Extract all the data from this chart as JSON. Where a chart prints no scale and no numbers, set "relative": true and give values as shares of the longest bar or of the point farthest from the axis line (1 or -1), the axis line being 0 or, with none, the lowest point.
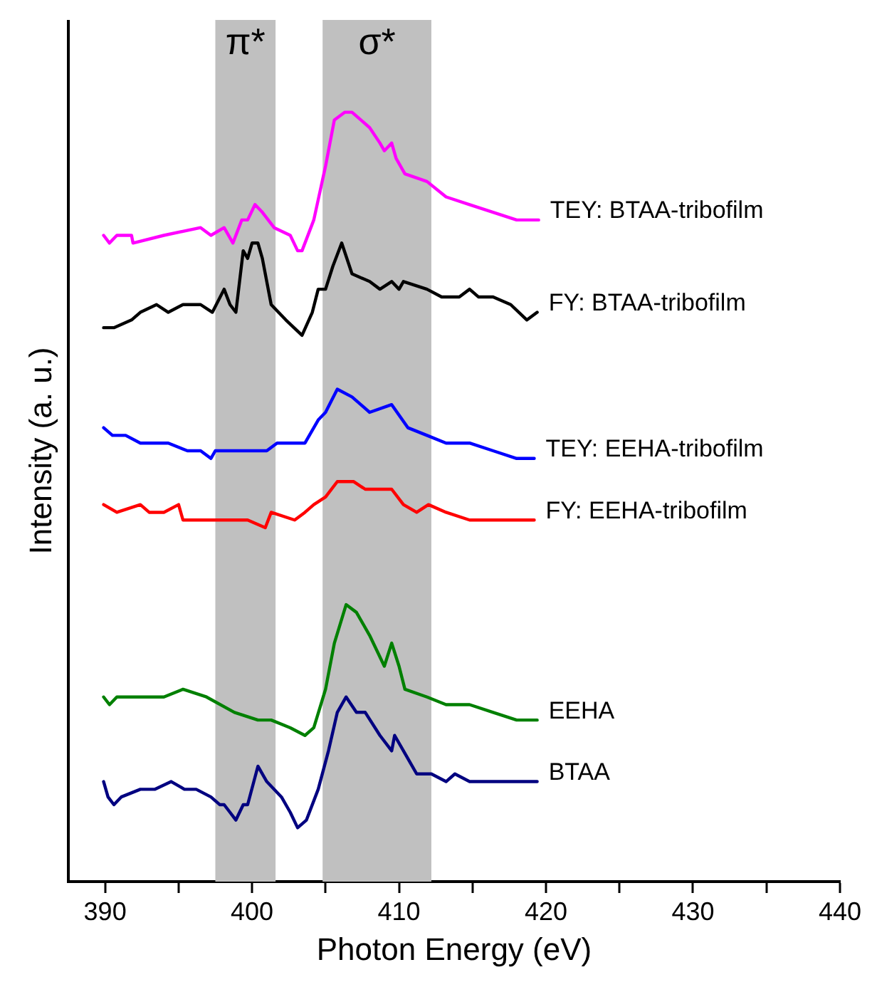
{
  "chart_data": {
    "type": "line",
    "relative": true,
    "xlabel": "Photon Energy (eV)",
    "ylabel": "Intensity (a. u.)",
    "xlim": [
      387.5,
      440
    ],
    "xticks": [
      390,
      {
        "value": 395,
        "label": null
      },
      400,
      {
        "value": 405,
        "label": null
      },
      410,
      {
        "value": 415,
        "label": null
      },
      420,
      {
        "value": 425,
        "label": null
      },
      430,
      {
        "value": 435,
        "label": null
      },
      440
    ],
    "grid": false,
    "legend": false,
    "marker": "none",
    "line_style": "solid",
    "bands": [
      {
        "axis": "x",
        "from": 397.5,
        "to": 401.6,
        "label": "π*",
        "color": "#c0c0c0"
      },
      {
        "axis": "x",
        "from": 404.8,
        "to": 412.2,
        "label": "σ*",
        "color": "#c0c0c0"
      }
    ],
    "series": [
      {
        "name": "TEY: BTAA-tribofilm",
        "color": "#ff00ff",
        "x": [
          389.9,
          390.3,
          390.8,
          391.8,
          391.9,
          394.0,
          396.5,
          397.2,
          398.1,
          398.7,
          399.3,
          399.7,
          400.2,
          400.7,
          401.5,
          402.6,
          403.1,
          403.4,
          404.2,
          405.0,
          405.6,
          406.3,
          406.8,
          407.4,
          408.0,
          408.7,
          409.0,
          409.5,
          409.8,
          410.4,
          411.9,
          413.2,
          414.8,
          416.4,
          418.0,
          419.5
        ],
        "values": [
          0.84,
          0.83,
          0.84,
          0.84,
          0.83,
          0.84,
          0.85,
          0.84,
          0.85,
          0.83,
          0.86,
          0.86,
          0.88,
          0.87,
          0.85,
          0.84,
          0.82,
          0.82,
          0.86,
          0.93,
          0.99,
          1.0,
          1.0,
          0.99,
          0.98,
          0.96,
          0.95,
          0.96,
          0.94,
          0.92,
          0.91,
          0.89,
          0.88,
          0.87,
          0.86,
          0.86
        ]
      },
      {
        "name": "FY: BTAA-tribofilm",
        "color": "#000000",
        "x": [
          389.9,
          390.6,
          391.8,
          392.4,
          393.5,
          394.3,
          395.3,
          396.5,
          397.3,
          398.1,
          398.5,
          398.9,
          399.4,
          399.7,
          400.0,
          400.4,
          400.7,
          401.3,
          402.3,
          403.4,
          404.1,
          404.5,
          405.0,
          405.5,
          406.1,
          406.8,
          408.0,
          408.7,
          409.5,
          410.0,
          410.3,
          411.9,
          412.9,
          414.1,
          414.8,
          415.4,
          416.4,
          417.6,
          418.7,
          419.4
        ],
        "values": [
          0.72,
          0.72,
          0.73,
          0.74,
          0.75,
          0.74,
          0.75,
          0.75,
          0.74,
          0.77,
          0.75,
          0.74,
          0.82,
          0.81,
          0.83,
          0.83,
          0.81,
          0.75,
          0.73,
          0.71,
          0.74,
          0.77,
          0.77,
          0.8,
          0.83,
          0.79,
          0.78,
          0.77,
          0.78,
          0.77,
          0.78,
          0.77,
          0.76,
          0.76,
          0.77,
          0.76,
          0.76,
          0.75,
          0.73,
          0.74
        ]
      },
      {
        "name": "TEY: EEHA-tribofilm",
        "color": "#0000ff",
        "x": [
          389.9,
          390.5,
          391.4,
          392.4,
          393.4,
          394.3,
          395.6,
          396.5,
          397.2,
          397.5,
          398.8,
          399.7,
          400.4,
          401.0,
          401.7,
          402.9,
          403.6,
          404.5,
          405.0,
          405.8,
          406.8,
          408.0,
          409.5,
          410.6,
          411.9,
          413.2,
          414.8,
          416.4,
          418.0,
          419.2
        ],
        "values": [
          0.59,
          0.58,
          0.58,
          0.57,
          0.57,
          0.57,
          0.56,
          0.56,
          0.55,
          0.56,
          0.56,
          0.56,
          0.56,
          0.56,
          0.57,
          0.57,
          0.57,
          0.6,
          0.61,
          0.64,
          0.63,
          0.61,
          0.62,
          0.59,
          0.58,
          0.57,
          0.57,
          0.56,
          0.55,
          0.55
        ]
      },
      {
        "name": "FY: EEHA-tribofilm",
        "color": "#ff0000",
        "x": [
          389.9,
          390.8,
          392.4,
          393.0,
          394.0,
          395.0,
          395.3,
          396.5,
          398.1,
          399.7,
          400.9,
          401.3,
          402.9,
          403.6,
          404.2,
          405.0,
          405.8,
          406.9,
          407.7,
          408.7,
          409.5,
          410.3,
          411.2,
          412.0,
          413.2,
          414.8,
          416.4,
          418.0,
          419.2
        ],
        "values": [
          0.49,
          0.48,
          0.49,
          0.48,
          0.48,
          0.49,
          0.47,
          0.47,
          0.47,
          0.47,
          0.46,
          0.48,
          0.47,
          0.48,
          0.49,
          0.5,
          0.52,
          0.52,
          0.51,
          0.51,
          0.51,
          0.49,
          0.48,
          0.49,
          0.48,
          0.47,
          0.47,
          0.47,
          0.47
        ]
      },
      {
        "name": "EEHA",
        "color": "#008000",
        "x": [
          389.9,
          390.3,
          390.8,
          391.3,
          392.4,
          394.0,
          395.3,
          396.9,
          398.8,
          400.4,
          401.3,
          402.6,
          403.6,
          404.2,
          405.0,
          405.6,
          406.4,
          407.1,
          408.0,
          409.0,
          409.5,
          410.0,
          410.4,
          411.9,
          413.2,
          414.8,
          416.4,
          418.0,
          419.4
        ],
        "values": [
          0.24,
          0.23,
          0.24,
          0.24,
          0.24,
          0.24,
          0.25,
          0.24,
          0.22,
          0.21,
          0.21,
          0.2,
          0.19,
          0.2,
          0.25,
          0.31,
          0.36,
          0.35,
          0.32,
          0.28,
          0.31,
          0.28,
          0.25,
          0.24,
          0.23,
          0.23,
          0.22,
          0.21,
          0.21
        ]
      },
      {
        "name": "BTAA",
        "color": "#000080",
        "x": [
          389.9,
          390.2,
          390.6,
          391.1,
          392.4,
          393.4,
          394.5,
          395.4,
          396.2,
          397.2,
          397.8,
          398.1,
          398.5,
          398.9,
          399.4,
          399.7,
          400.4,
          401.0,
          402.0,
          402.6,
          403.1,
          403.7,
          404.5,
          405.2,
          405.8,
          406.4,
          407.1,
          407.7,
          408.7,
          409.5,
          409.7,
          410.6,
          411.2,
          412.2,
          413.2,
          413.8,
          414.8,
          416.4,
          419.4
        ],
        "values": [
          0.13,
          0.11,
          0.1,
          0.11,
          0.12,
          0.12,
          0.13,
          0.12,
          0.12,
          0.11,
          0.1,
          0.1,
          0.09,
          0.08,
          0.1,
          0.1,
          0.15,
          0.13,
          0.11,
          0.09,
          0.07,
          0.08,
          0.12,
          0.17,
          0.22,
          0.24,
          0.22,
          0.22,
          0.19,
          0.17,
          0.19,
          0.16,
          0.14,
          0.14,
          0.13,
          0.14,
          0.13,
          0.13,
          0.13
        ]
      }
    ]
  }
}
